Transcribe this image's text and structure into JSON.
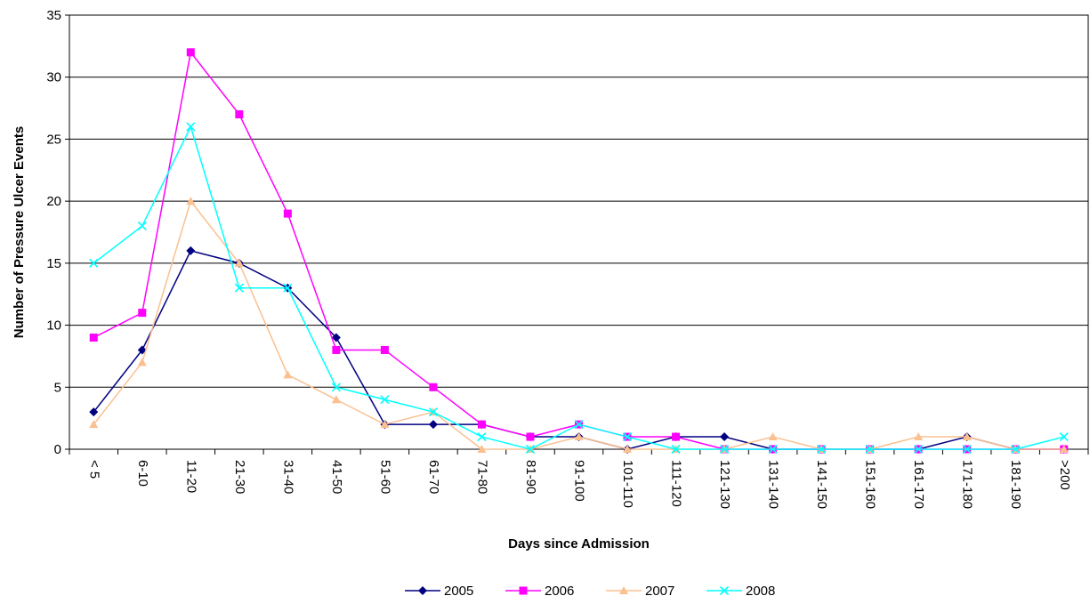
{
  "chart_data": {
    "type": "line",
    "title": "",
    "xlabel": "Days since Admission",
    "ylabel": "Number of Pressure Ulcer Events",
    "ylim": [
      0,
      35
    ],
    "yticks": [
      0,
      5,
      10,
      15,
      20,
      25,
      30,
      35
    ],
    "grid": "horizontal",
    "legend_position": "bottom",
    "categories": [
      "< 5",
      "6-10",
      "11-20",
      "21-30",
      "31-40",
      "41-50",
      "51-60",
      "61-70",
      "71-80",
      "81-90",
      "91-100",
      "101-110",
      "111-120",
      "121-130",
      "131-140",
      "141-150",
      "151-160",
      "161-170",
      "171-180",
      "181-190",
      ">200"
    ],
    "series": [
      {
        "name": "2005",
        "color": "#000080",
        "marker": "diamond",
        "values": [
          3,
          8,
          16,
          15,
          13,
          9,
          2,
          2,
          2,
          1,
          1,
          0,
          1,
          1,
          0,
          0,
          0,
          0,
          1,
          0,
          0
        ]
      },
      {
        "name": "2006",
        "color": "#FF00FF",
        "marker": "square",
        "values": [
          9,
          11,
          32,
          27,
          19,
          8,
          8,
          5,
          2,
          1,
          2,
          1,
          1,
          0,
          0,
          0,
          0,
          0,
          0,
          0,
          0
        ]
      },
      {
        "name": "2007",
        "color": "#FAC090",
        "marker": "triangle",
        "values": [
          2,
          7,
          20,
          15,
          6,
          4,
          2,
          3,
          0,
          0,
          1,
          0,
          0,
          0,
          1,
          0,
          0,
          1,
          1,
          0,
          0
        ]
      },
      {
        "name": "2008",
        "color": "#00FFFF",
        "marker": "x",
        "values": [
          15,
          18,
          26,
          13,
          13,
          5,
          4,
          3,
          1,
          0,
          2,
          1,
          0,
          0,
          0,
          0,
          0,
          0,
          0,
          0,
          1
        ]
      }
    ]
  }
}
